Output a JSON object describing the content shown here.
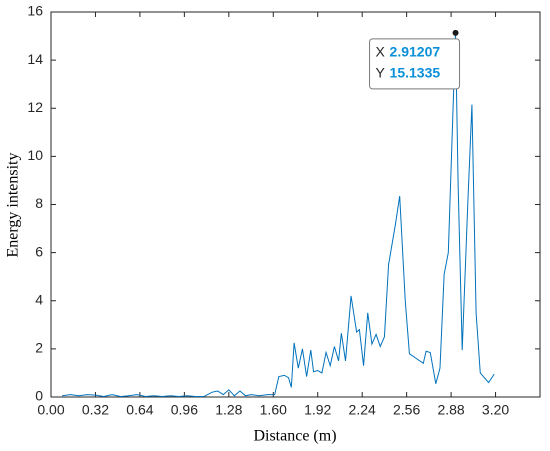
{
  "chart_data": {
    "type": "line",
    "xlabel": "Distance (m)",
    "ylabel": "Energy intensity",
    "x": [
      0.08,
      0.14,
      0.2,
      0.26,
      0.32,
      0.38,
      0.44,
      0.5,
      0.56,
      0.62,
      0.68,
      0.74,
      0.8,
      0.86,
      0.92,
      0.98,
      1.04,
      1.1,
      1.16,
      1.2,
      1.24,
      1.28,
      1.32,
      1.36,
      1.4,
      1.44,
      1.5,
      1.56,
      1.61,
      1.64,
      1.68,
      1.71,
      1.73,
      1.75,
      1.78,
      1.81,
      1.84,
      1.87,
      1.89,
      1.92,
      1.95,
      1.98,
      2.01,
      2.04,
      2.07,
      2.09,
      2.12,
      2.16,
      2.2,
      2.22,
      2.25,
      2.28,
      2.31,
      2.34,
      2.37,
      2.4,
      2.43,
      2.48,
      2.51,
      2.55,
      2.58,
      2.63,
      2.68,
      2.7,
      2.73,
      2.77,
      2.8,
      2.83,
      2.86,
      2.91207,
      2.93,
      2.96,
      3.0,
      3.03,
      3.06,
      3.09,
      3.15,
      3.19
    ],
    "series": [
      {
        "name": "Energy intensity",
        "color": "#0072bd",
        "values": [
          0.05,
          0.1,
          0.05,
          0.1,
          0.08,
          0.02,
          0.1,
          0.02,
          0.05,
          0.1,
          0.02,
          0.05,
          0.02,
          0.05,
          0.02,
          0.05,
          0.02,
          0.02,
          0.2,
          0.25,
          0.1,
          0.3,
          0.05,
          0.25,
          0.05,
          0.1,
          0.05,
          0.1,
          0.1,
          0.85,
          0.9,
          0.8,
          0.4,
          2.25,
          1.2,
          2.0,
          0.85,
          1.95,
          1.05,
          1.1,
          1.0,
          1.85,
          1.3,
          2.1,
          1.5,
          2.65,
          1.5,
          4.2,
          2.7,
          2.8,
          1.3,
          3.5,
          2.2,
          2.6,
          2.1,
          2.5,
          5.5,
          7.2,
          8.35,
          4.0,
          1.8,
          1.6,
          1.4,
          1.9,
          1.85,
          0.55,
          1.2,
          5.1,
          6.0,
          15.1335,
          9,
          1.95,
          8,
          12.15,
          3.5,
          1.0,
          0.6,
          0.95
        ]
      }
    ],
    "xlim": [
      0,
      3.52
    ],
    "xticks": [
      {
        "value": 0,
        "label": "0.00"
      },
      0.32,
      0.64,
      0.96,
      1.28,
      {
        "value": 1.6,
        "label": "1.60"
      },
      1.92,
      2.24,
      2.56,
      2.88,
      {
        "value": 3.2,
        "label": "3.20"
      }
    ],
    "ylim": [
      0,
      16
    ],
    "yticks": [
      0,
      2,
      4,
      6,
      8,
      10,
      12,
      14,
      16
    ],
    "datatip": {
      "index": 69,
      "x_label": "X",
      "y_label": "Y",
      "marker_color": "#1a1a1a"
    }
  }
}
